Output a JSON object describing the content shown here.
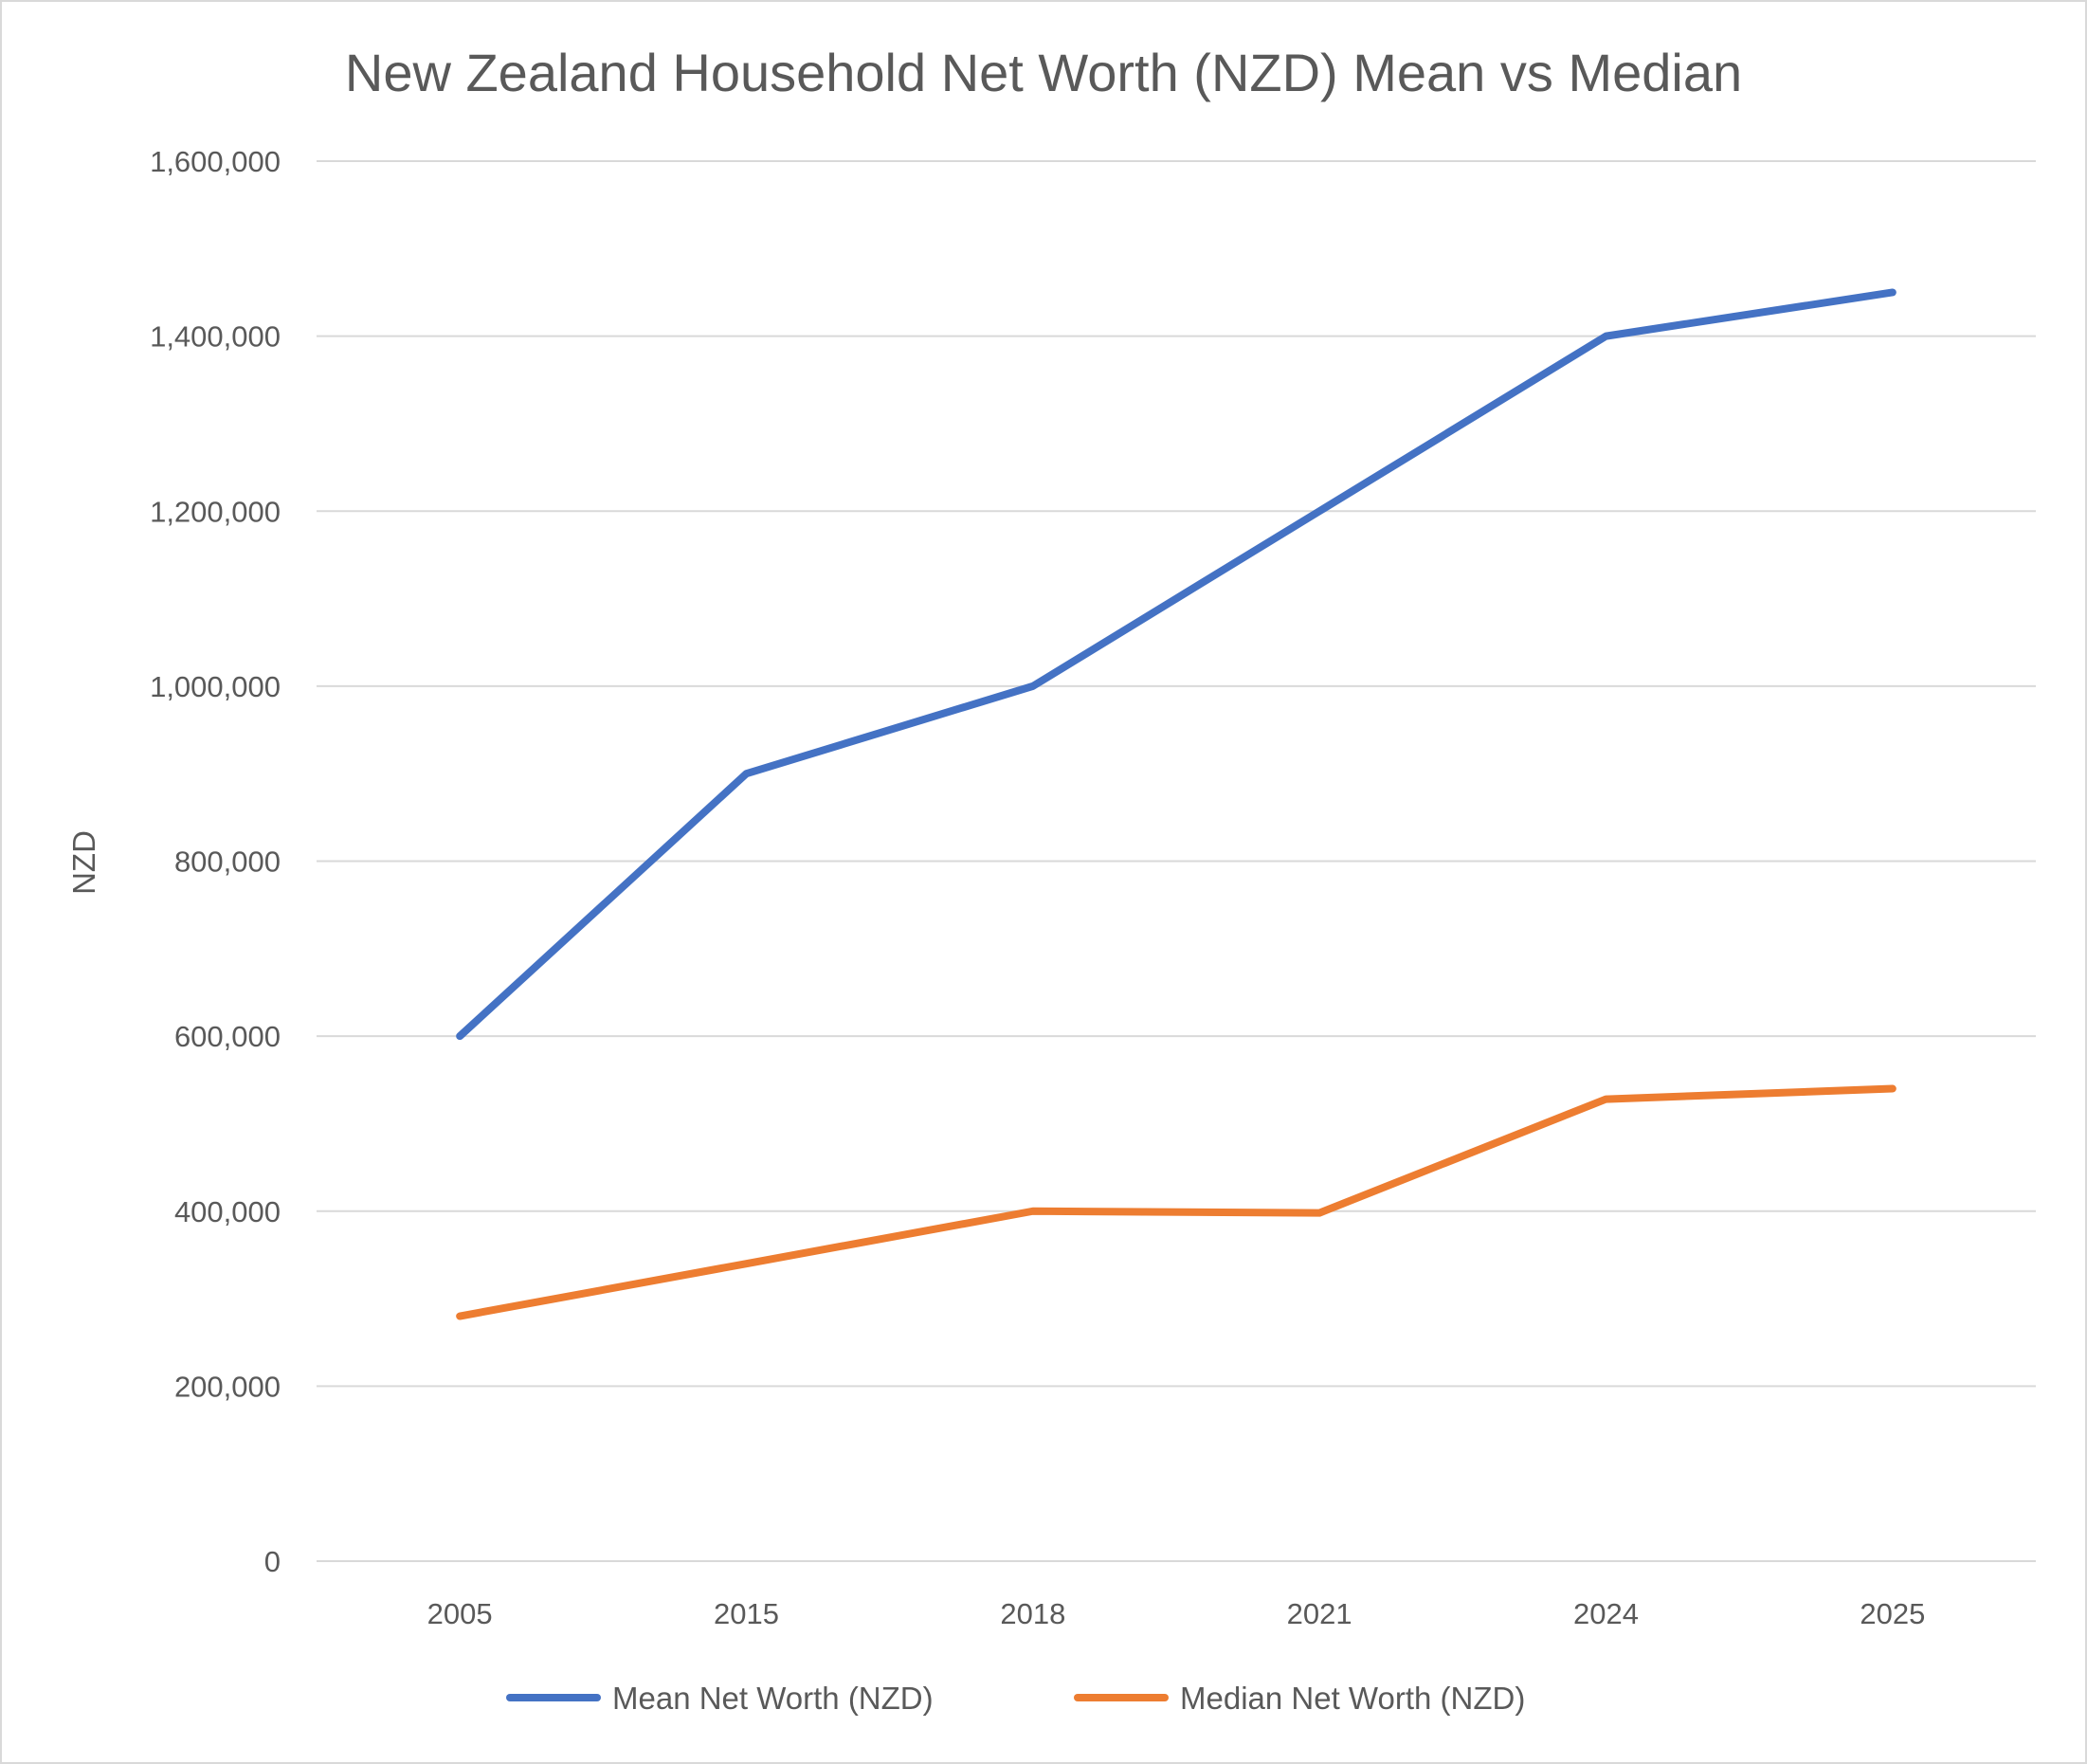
{
  "chart_data": {
    "type": "line",
    "title": "New Zealand Household Net Worth (NZD) Mean vs Median",
    "xlabel": "",
    "ylabel": "NZD",
    "categories": [
      "2005",
      "2015",
      "2018",
      "2021",
      "2024",
      "2025"
    ],
    "ylim": [
      0,
      1600000
    ],
    "yticks": [
      0,
      200000,
      400000,
      600000,
      800000,
      1000000,
      1200000,
      1400000,
      1600000
    ],
    "ytick_labels": [
      "0",
      "200,000",
      "400,000",
      "600,000",
      "800,000",
      "1,000,000",
      "1,200,000",
      "1,400,000",
      "1,600,000"
    ],
    "grid": "horizontal",
    "legend_position": "bottom",
    "series": [
      {
        "name": "Mean Net Worth (NZD)",
        "color": "#4472C4",
        "values": [
          600000,
          900000,
          1000000,
          1200000,
          1400000,
          1450000
        ]
      },
      {
        "name": "Median Net Worth (NZD)",
        "color": "#ED7D31",
        "values": [
          280000,
          340000,
          400000,
          398000,
          528000,
          540000
        ]
      }
    ]
  }
}
